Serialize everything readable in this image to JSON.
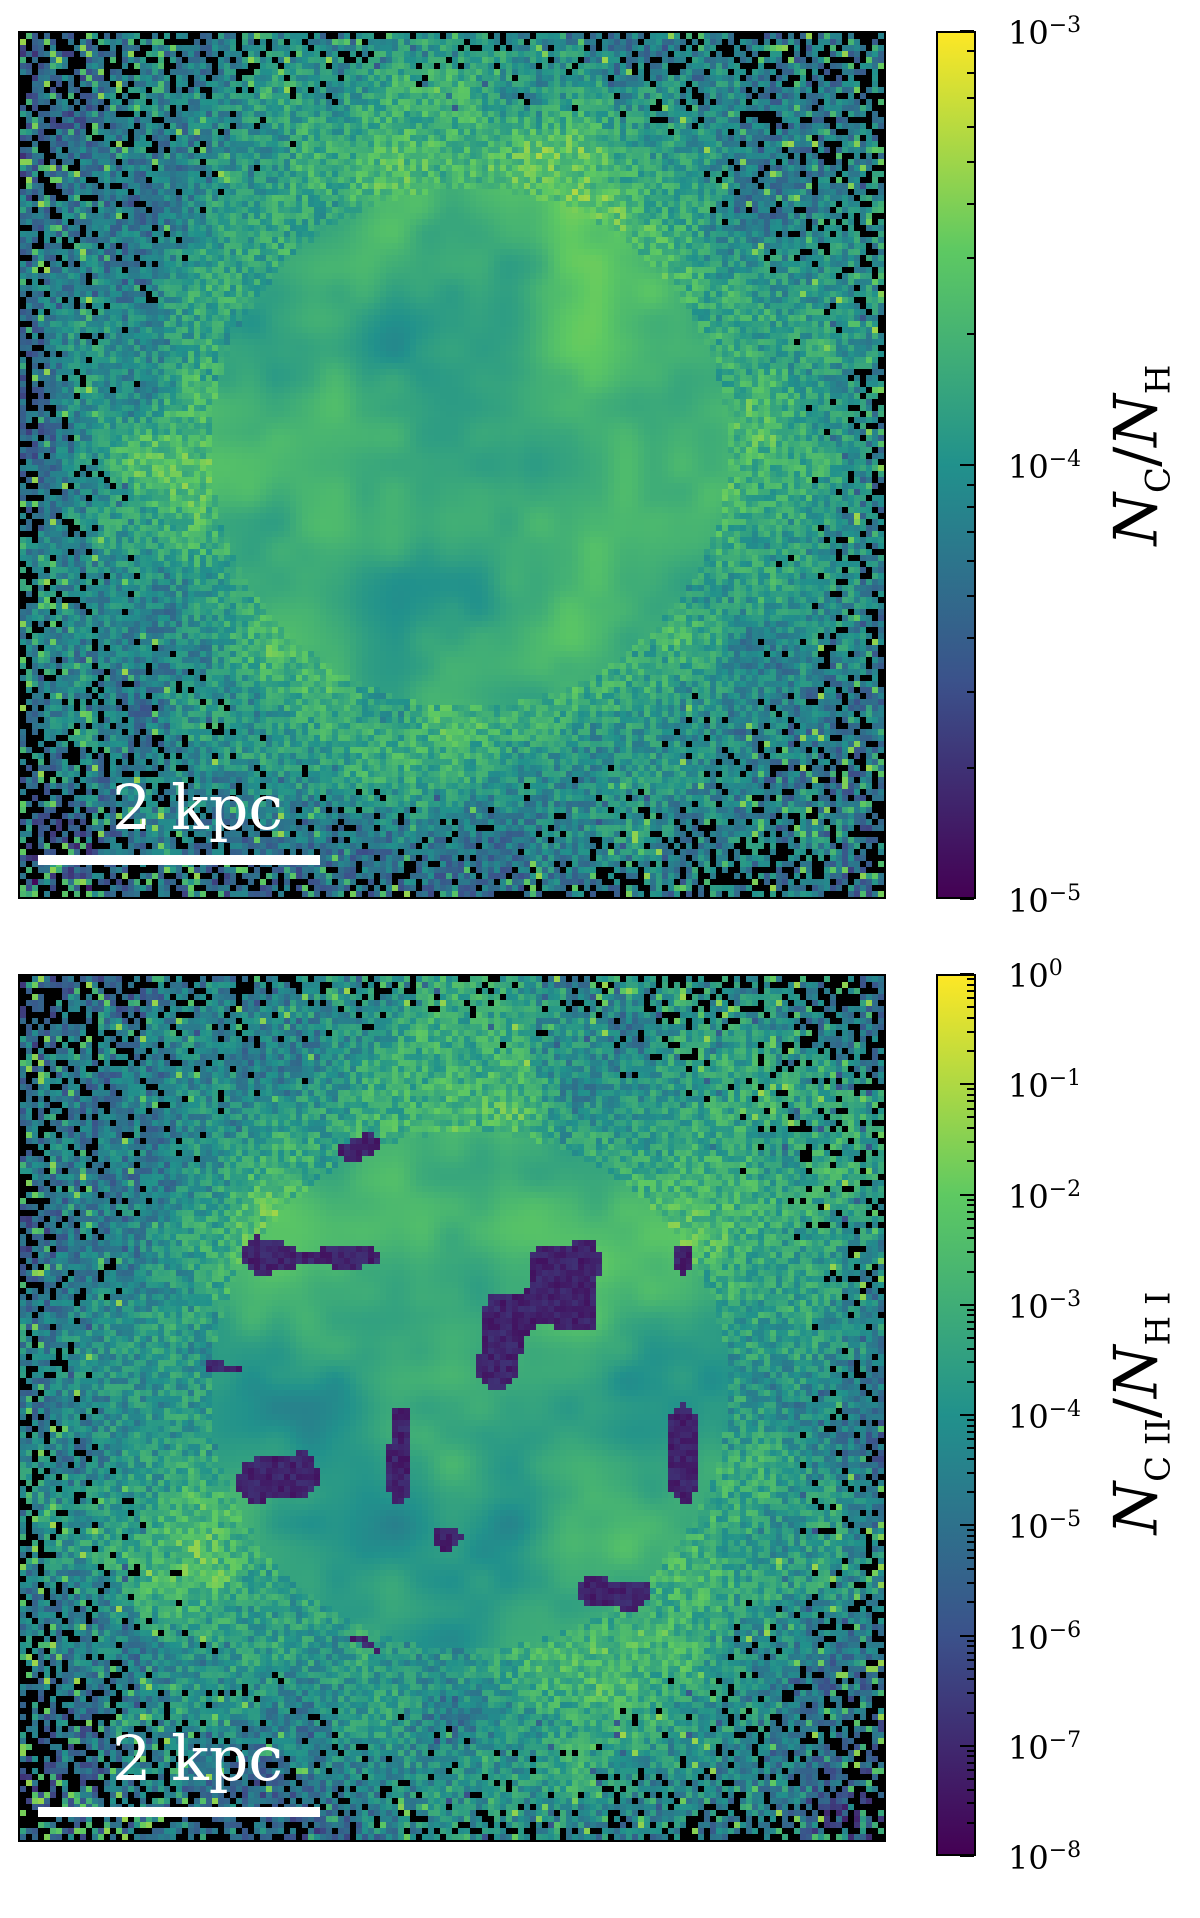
{
  "colormap": {
    "name": "viridis",
    "stops": [
      "#440154",
      "#3b528b",
      "#21918c",
      "#5ec962",
      "#fde725"
    ],
    "background": "#000000"
  },
  "panels": [
    {
      "id": "top",
      "scalebar": {
        "label": "2 kpc"
      },
      "colorbar": {
        "scale": "log",
        "range": [
          1e-05,
          0.001
        ],
        "ticks": [
          {
            "base": "10",
            "exp": "−3",
            "value": 0.001
          },
          {
            "base": "10",
            "exp": "−4",
            "value": 0.0001
          },
          {
            "base": "10",
            "exp": "−5",
            "value": 1e-05
          }
        ],
        "label_parts": [
          "N",
          "C",
          "/",
          "N",
          "H"
        ]
      },
      "dominant_level": 0.62
    },
    {
      "id": "bottom",
      "scalebar": {
        "label": "2 kpc"
      },
      "colorbar": {
        "scale": "log",
        "range": [
          1e-08,
          1
        ],
        "ticks": [
          {
            "base": "10",
            "exp": "0",
            "value": 1
          },
          {
            "base": "10",
            "exp": "−1",
            "value": 0.1
          },
          {
            "base": "10",
            "exp": "−2",
            "value": 0.01
          },
          {
            "base": "10",
            "exp": "−3",
            "value": 0.001
          },
          {
            "base": "10",
            "exp": "−4",
            "value": 0.0001
          },
          {
            "base": "10",
            "exp": "−5",
            "value": 1e-05
          },
          {
            "base": "10",
            "exp": "−6",
            "value": 1e-06
          },
          {
            "base": "10",
            "exp": "−7",
            "value": 1e-07
          },
          {
            "base": "10",
            "exp": "−8",
            "value": 1e-08
          }
        ],
        "label_parts": [
          "N",
          "C II",
          "/",
          "N",
          "H I"
        ]
      },
      "dominant_level": 0.6
    }
  ]
}
